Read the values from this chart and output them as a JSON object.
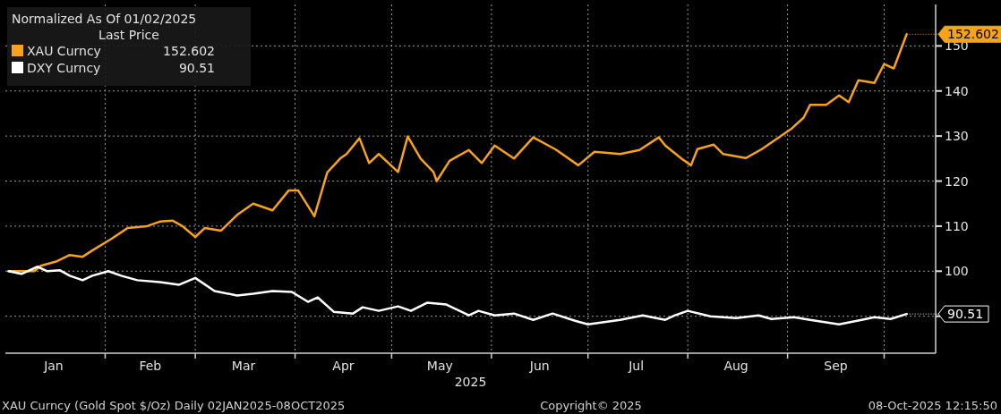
{
  "chart_data": {
    "type": "line",
    "title": "Normalized As Of 01/02/2025",
    "legend_title": "Last Price",
    "xlabel": "2025",
    "xlim": [
      "2025-01-01",
      "2025-10-17"
    ],
    "xticks": [
      {
        "value": "2025-01-16",
        "label": "Jan"
      },
      {
        "value": "2025-02-01",
        "label": null
      },
      {
        "value": "2025-02-15",
        "label": "Feb"
      },
      {
        "value": "2025-03-01",
        "label": null
      },
      {
        "value": "2025-03-16",
        "label": "Mar"
      },
      {
        "value": "2025-04-01",
        "label": null
      },
      {
        "value": "2025-04-16",
        "label": "Apr"
      },
      {
        "value": "2025-05-01",
        "label": null
      },
      {
        "value": "2025-05-16",
        "label": "May"
      },
      {
        "value": "2025-06-01",
        "label": null
      },
      {
        "value": "2025-06-16",
        "label": "Jun"
      },
      {
        "value": "2025-07-01",
        "label": null
      },
      {
        "value": "2025-07-16",
        "label": "Jul"
      },
      {
        "value": "2025-08-01",
        "label": null
      },
      {
        "value": "2025-08-16",
        "label": "Aug"
      },
      {
        "value": "2025-09-01",
        "label": null
      },
      {
        "value": "2025-09-16",
        "label": "Sep"
      },
      {
        "value": "2025-10-01",
        "label": null
      }
    ],
    "ylim": [
      81.8,
      159.2
    ],
    "yticks": [
      {
        "value": 90,
        "label": null
      },
      100,
      110,
      120,
      130,
      140,
      150
    ],
    "grid": true,
    "legend": "top left",
    "line_style": "solid",
    "series": [
      {
        "name": "XAU Curncy",
        "color": "#f7a21b",
        "x": [
          "2025-01-02",
          "2025-01-10",
          "2025-01-12",
          "2025-01-17",
          "2025-01-21",
          "2025-01-25",
          "2025-01-28",
          "2025-02-03",
          "2025-02-08",
          "2025-02-14",
          "2025-02-18",
          "2025-02-22",
          "2025-02-25",
          "2025-03-01",
          "2025-03-04",
          "2025-03-09",
          "2025-03-14",
          "2025-03-19",
          "2025-03-25",
          "2025-03-30",
          "2025-04-02",
          "2025-04-07",
          "2025-04-11",
          "2025-04-15",
          "2025-04-17",
          "2025-04-21",
          "2025-04-24",
          "2025-04-27",
          "2025-05-03",
          "2025-05-06",
          "2025-05-10",
          "2025-05-14",
          "2025-05-15",
          "2025-05-19",
          "2025-05-25",
          "2025-05-29",
          "2025-06-02",
          "2025-06-08",
          "2025-06-14",
          "2025-06-21",
          "2025-06-28",
          "2025-07-03",
          "2025-07-11",
          "2025-07-17",
          "2025-07-23",
          "2025-07-25",
          "2025-07-30",
          "2025-08-02",
          "2025-08-04",
          "2025-08-09",
          "2025-08-12",
          "2025-08-19",
          "2025-08-24",
          "2025-09-02",
          "2025-09-06",
          "2025-09-08",
          "2025-09-13",
          "2025-09-17",
          "2025-09-20",
          "2025-09-23",
          "2025-09-28",
          "2025-10-01",
          "2025-10-04",
          "2025-10-08"
        ],
        "values": [
          100,
          100,
          101.2,
          102.2,
          103.6,
          103.2,
          104.6,
          107.2,
          109.6,
          110,
          111,
          111.2,
          110,
          107.6,
          109.6,
          109,
          112.5,
          115,
          113.5,
          117.9,
          117.9,
          112.2,
          121.9,
          125,
          126,
          129.5,
          124,
          126,
          122,
          129.9,
          125,
          122,
          120,
          124.5,
          126.9,
          124,
          127.9,
          125,
          129.7,
          127,
          123.5,
          126.5,
          126,
          126.9,
          129.7,
          127.9,
          125,
          123.5,
          127.1,
          128.1,
          126,
          125.1,
          127.1,
          131.5,
          134.1,
          136.9,
          136.9,
          139,
          137.5,
          142.4,
          141.8,
          146,
          145,
          152.602
        ],
        "value_labels": [
          null,
          null,
          null,
          null,
          null,
          null,
          null,
          null,
          null,
          null,
          null,
          null,
          null,
          null,
          null,
          null,
          null,
          null,
          null,
          null,
          null,
          null,
          null,
          null,
          null,
          null,
          null,
          null,
          null,
          null,
          null,
          null,
          null,
          null,
          null,
          null,
          null,
          null,
          null,
          null,
          null,
          null,
          null,
          null,
          null,
          null,
          null,
          null,
          null,
          null,
          null,
          null,
          null,
          null,
          null,
          null,
          null,
          null,
          null,
          null,
          null,
          null,
          null,
          "152.602"
        ]
      },
      {
        "name": "DXY Curncy",
        "color": "#ffffff",
        "x": [
          "2025-01-02",
          "2025-01-06",
          "2025-01-11",
          "2025-01-14",
          "2025-01-18",
          "2025-01-21",
          "2025-01-25",
          "2025-01-28",
          "2025-02-02",
          "2025-02-06",
          "2025-02-11",
          "2025-02-18",
          "2025-02-24",
          "2025-03-01",
          "2025-03-07",
          "2025-03-14",
          "2025-03-19",
          "2025-03-25",
          "2025-03-31",
          "2025-04-05",
          "2025-04-08",
          "2025-04-13",
          "2025-04-19",
          "2025-04-22",
          "2025-04-27",
          "2025-05-03",
          "2025-05-07",
          "2025-05-12",
          "2025-05-18",
          "2025-05-25",
          "2025-05-28",
          "2025-06-02",
          "2025-06-08",
          "2025-06-14",
          "2025-06-20",
          "2025-06-27",
          "2025-07-01",
          "2025-07-11",
          "2025-07-18",
          "2025-07-25",
          "2025-07-28",
          "2025-08-01",
          "2025-08-08",
          "2025-08-16",
          "2025-08-23",
          "2025-08-27",
          "2025-09-03",
          "2025-09-08",
          "2025-09-17",
          "2025-09-24",
          "2025-09-28",
          "2025-10-03",
          "2025-10-08"
        ],
        "values": [
          100,
          99.4,
          101,
          100,
          100.2,
          99,
          98,
          99,
          100,
          99,
          98,
          97.6,
          97,
          98.5,
          95.6,
          94.6,
          95,
          95.6,
          95.4,
          93.2,
          94.2,
          91,
          90.6,
          92,
          91.2,
          92.2,
          91.2,
          93,
          92.6,
          90.2,
          91.2,
          90.2,
          90.6,
          89.2,
          90.6,
          89,
          88.2,
          89.2,
          90.2,
          89.2,
          90.2,
          91.2,
          90,
          89.6,
          90.2,
          89.4,
          89.8,
          89.2,
          88.2,
          89.2,
          89.8,
          89.4,
          90.51
        ],
        "value_labels": [
          null,
          null,
          null,
          null,
          null,
          null,
          null,
          null,
          null,
          null,
          null,
          null,
          null,
          null,
          null,
          null,
          null,
          null,
          null,
          null,
          null,
          null,
          null,
          null,
          null,
          null,
          null,
          null,
          null,
          null,
          null,
          null,
          null,
          null,
          null,
          null,
          null,
          null,
          null,
          null,
          null,
          null,
          null,
          null,
          null,
          null,
          null,
          null,
          null,
          null,
          null,
          null,
          "90.51"
        ]
      }
    ],
    "annotations": [
      "XAU Curncy (Gold Spot  $/Oz) Daily 02JAN2025-08OCT2025",
      "Copyright© 2025",
      "08-Oct-2025 12:15:50"
    ]
  }
}
